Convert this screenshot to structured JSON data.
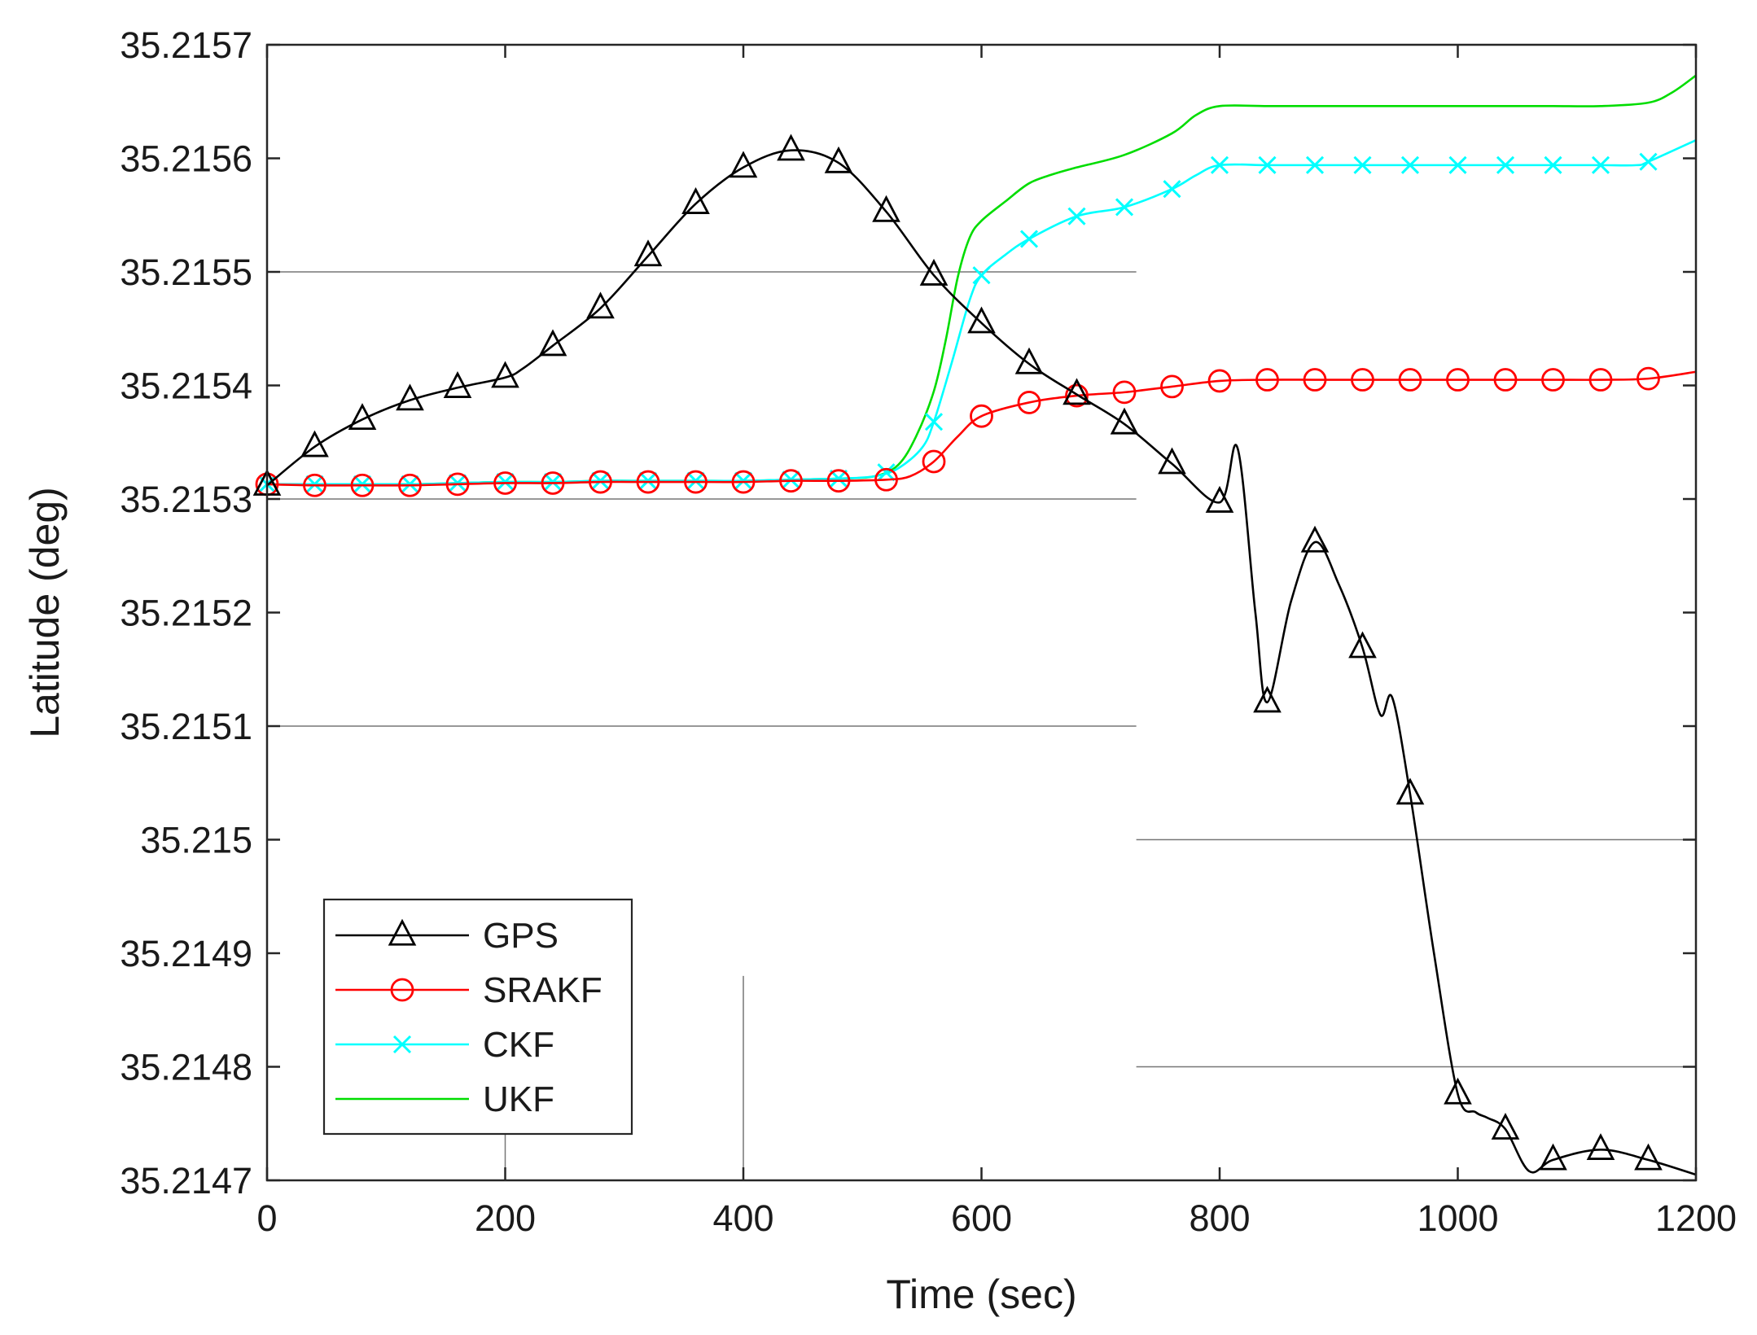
{
  "chart_data": {
    "type": "line",
    "title": "",
    "xlabel": "Time (sec)",
    "ylabel": "Latitude (deg)",
    "xlim": [
      0,
      1200
    ],
    "ylim": [
      35.2147,
      35.2157
    ],
    "xticks": [
      0,
      200,
      400,
      600,
      800,
      1000,
      1200
    ],
    "xtick_labels": [
      "0",
      "200",
      "400",
      "600",
      "800",
      "1000",
      "1200"
    ],
    "yticks": [
      35.2147,
      35.2148,
      35.2149,
      35.215,
      35.2151,
      35.2152,
      35.2153,
      35.2154,
      35.2155,
      35.2156,
      35.2157
    ],
    "ytick_labels": [
      "35.2147",
      "35.2148",
      "35.2149",
      "35.215",
      "35.2151",
      "35.2152",
      "35.2153",
      "35.2154",
      "35.2155",
      "35.2156",
      "35.2157"
    ],
    "legend_position": "bottom-left",
    "series": [
      {
        "name": "GPS",
        "color": "#000000",
        "marker": "triangle",
        "x": [
          0,
          40,
          80,
          120,
          160,
          200,
          215,
          240,
          280,
          320,
          360,
          400,
          440,
          480,
          520,
          560,
          600,
          640,
          680,
          720,
          760,
          800,
          815,
          830,
          840,
          860,
          880,
          900,
          920,
          935,
          945,
          960,
          980,
          1000,
          1015,
          1025,
          1040,
          1060,
          1080,
          1120,
          1160,
          1200
        ],
        "y": [
          35.215312,
          35.215346,
          35.21537,
          35.215387,
          35.215398,
          35.215407,
          35.215415,
          35.215435,
          35.215468,
          35.215514,
          35.21556,
          35.215592,
          35.215607,
          35.215596,
          35.215553,
          35.215497,
          35.215455,
          35.215419,
          35.215392,
          35.215366,
          35.215331,
          35.215297,
          35.215345,
          35.2152,
          35.215121,
          35.21521,
          35.215262,
          35.215225,
          35.215169,
          35.21511,
          35.215125,
          35.21504,
          35.2149,
          35.214776,
          35.21476,
          35.214755,
          35.214745,
          35.214708,
          35.214718,
          35.214727,
          35.214718,
          35.214705
        ],
        "marker_x": [
          0,
          40,
          80,
          120,
          160,
          200,
          240,
          280,
          320,
          360,
          400,
          440,
          480,
          520,
          560,
          600,
          640,
          680,
          720,
          760,
          800,
          840,
          880,
          920,
          960,
          1000,
          1040,
          1080,
          1120,
          1160
        ]
      },
      {
        "name": "SRAKF",
        "color": "#ff0000",
        "marker": "circle",
        "x": [
          0,
          40,
          80,
          120,
          160,
          200,
          240,
          280,
          320,
          360,
          400,
          440,
          480,
          520,
          540,
          560,
          580,
          600,
          640,
          680,
          720,
          760,
          800,
          840,
          880,
          920,
          960,
          1000,
          1040,
          1080,
          1120,
          1160,
          1200
        ],
        "y": [
          35.215313,
          35.215312,
          35.215312,
          35.215312,
          35.215313,
          35.215314,
          35.215314,
          35.215315,
          35.215315,
          35.215315,
          35.215315,
          35.215316,
          35.215316,
          35.215317,
          35.21532,
          35.215333,
          35.215355,
          35.215373,
          35.215385,
          35.215391,
          35.215394,
          35.215399,
          35.215404,
          35.215405,
          35.215405,
          35.215405,
          35.215405,
          35.215405,
          35.215405,
          35.215405,
          35.215405,
          35.215406,
          35.215412
        ],
        "marker_x": [
          0,
          40,
          80,
          120,
          160,
          200,
          240,
          280,
          320,
          360,
          400,
          440,
          480,
          520,
          560,
          600,
          640,
          680,
          720,
          760,
          800,
          840,
          880,
          920,
          960,
          1000,
          1040,
          1080,
          1120,
          1160
        ]
      },
      {
        "name": "CKF",
        "color": "#00ffff",
        "marker": "x",
        "x": [
          0,
          40,
          80,
          120,
          160,
          200,
          240,
          280,
          320,
          360,
          400,
          440,
          480,
          510,
          530,
          550,
          560,
          575,
          590,
          600,
          620,
          640,
          680,
          720,
          760,
          780,
          800,
          840,
          880,
          920,
          960,
          1000,
          1040,
          1080,
          1120,
          1150,
          1160,
          1200
        ],
        "y": [
          35.215313,
          35.215313,
          35.215313,
          35.215313,
          35.215314,
          35.215315,
          35.215315,
          35.215316,
          35.215316,
          35.215316,
          35.215316,
          35.215317,
          35.215318,
          35.21532,
          35.215327,
          35.215345,
          35.215368,
          35.21542,
          35.215475,
          35.215497,
          35.215515,
          35.215529,
          35.215549,
          35.215557,
          35.215573,
          35.215585,
          35.215594,
          35.215594,
          35.215594,
          35.215594,
          35.215594,
          35.215594,
          35.215594,
          35.215594,
          35.215594,
          35.215594,
          35.215597,
          35.215616
        ],
        "marker_x": [
          0,
          40,
          80,
          120,
          160,
          200,
          240,
          280,
          320,
          360,
          400,
          440,
          480,
          520,
          560,
          600,
          640,
          680,
          720,
          760,
          800,
          840,
          880,
          920,
          960,
          1000,
          1040,
          1080,
          1120,
          1160
        ]
      },
      {
        "name": "UKF",
        "color": "#00dd00",
        "marker": "none",
        "x": [
          0,
          40,
          80,
          120,
          160,
          200,
          240,
          280,
          320,
          360,
          400,
          440,
          480,
          510,
          530,
          545,
          560,
          570,
          580,
          590,
          600,
          620,
          640,
          660,
          680,
          720,
          760,
          780,
          800,
          840,
          880,
          920,
          960,
          1000,
          1040,
          1080,
          1120,
          1160,
          1180,
          1200
        ],
        "y": [
          35.215313,
          35.215313,
          35.215313,
          35.215313,
          35.215314,
          35.215315,
          35.215315,
          35.215316,
          35.215316,
          35.215316,
          35.215316,
          35.215317,
          35.215318,
          35.21532,
          35.21533,
          35.215355,
          35.215395,
          35.21544,
          35.215495,
          35.21553,
          35.215545,
          35.215562,
          35.215578,
          35.215586,
          35.215592,
          35.215603,
          35.215622,
          35.215638,
          35.215646,
          35.215646,
          35.215646,
          35.215646,
          35.215646,
          35.215646,
          35.215646,
          35.215646,
          35.215646,
          35.215649,
          35.215658,
          35.215673
        ]
      }
    ]
  }
}
